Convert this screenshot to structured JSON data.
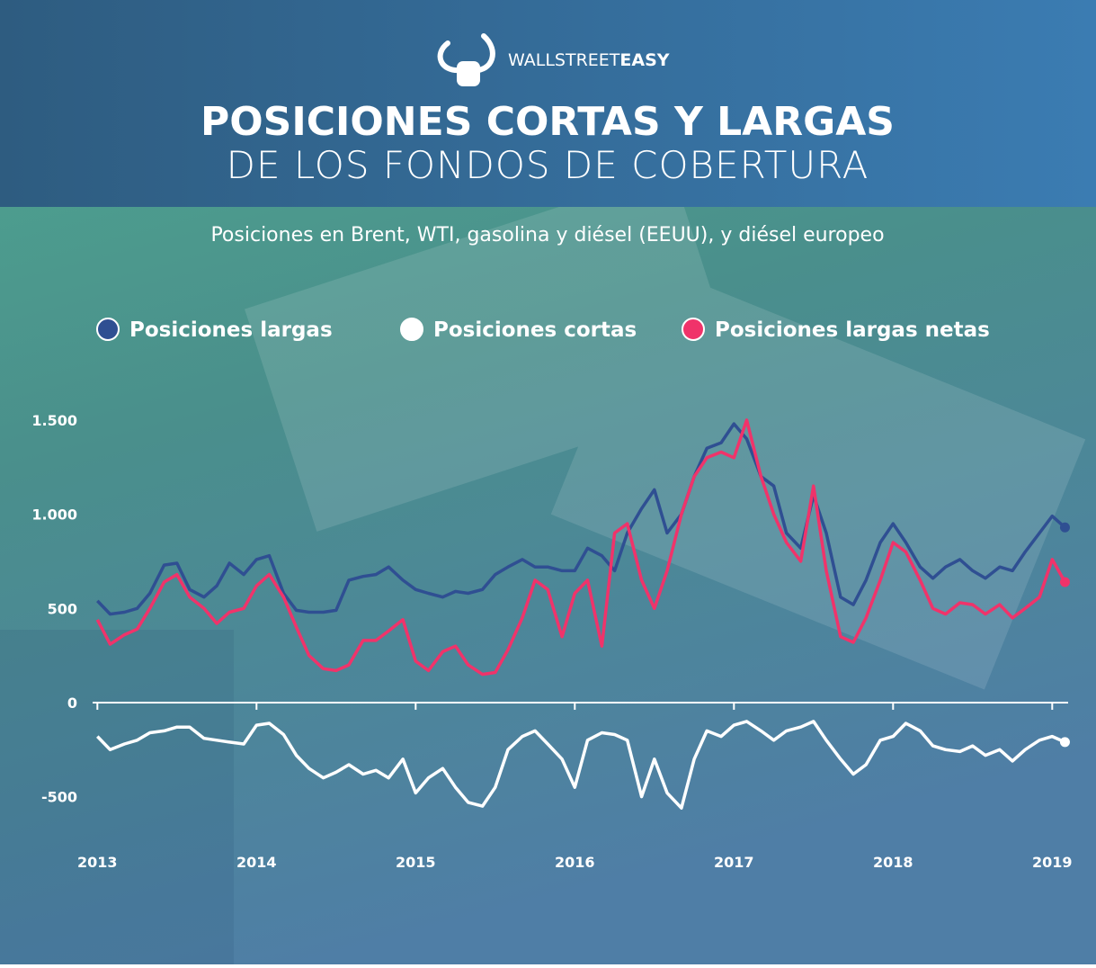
{
  "brand": [
    "WALLSTREET",
    "EASY"
  ],
  "chart_data": {
    "type": "line",
    "title": [
      "POSICIONES CORTAS Y LARGAS",
      "DE LOS FONDOS DE COBERTURA"
    ],
    "subtitle": "Posiciones en Brent, WTI, gasolina y diésel (EEUU), y diésel europeo",
    "x": [
      2013.0,
      2013.08,
      2013.17,
      2013.25,
      2013.33,
      2013.42,
      2013.5,
      2013.58,
      2013.67,
      2013.75,
      2013.83,
      2013.92,
      2014.0,
      2014.08,
      2014.17,
      2014.25,
      2014.33,
      2014.42,
      2014.5,
      2014.58,
      2014.67,
      2014.75,
      2014.83,
      2014.92,
      2015.0,
      2015.08,
      2015.17,
      2015.25,
      2015.33,
      2015.42,
      2015.5,
      2015.58,
      2015.67,
      2015.75,
      2015.83,
      2015.92,
      2016.0,
      2016.08,
      2016.17,
      2016.25,
      2016.33,
      2016.42,
      2016.5,
      2016.58,
      2016.67,
      2016.75,
      2016.83,
      2016.92,
      2017.0,
      2017.08,
      2017.17,
      2017.25,
      2017.33,
      2017.42,
      2017.5,
      2017.58,
      2017.67,
      2017.75,
      2017.83,
      2017.92,
      2018.0,
      2018.08,
      2018.17,
      2018.25,
      2018.33,
      2018.42,
      2018.5,
      2018.58,
      2018.67,
      2018.75,
      2018.83,
      2018.92,
      2019.0,
      2019.08
    ],
    "series": [
      {
        "name": "Posiciones largas",
        "color": "#2f4f92",
        "values": [
          540,
          470,
          480,
          500,
          580,
          730,
          740,
          600,
          560,
          620,
          740,
          680,
          760,
          780,
          580,
          490,
          480,
          480,
          490,
          650,
          670,
          680,
          720,
          650,
          600,
          580,
          560,
          590,
          580,
          600,
          680,
          720,
          760,
          720,
          720,
          700,
          700,
          820,
          780,
          700,
          900,
          1030,
          1130,
          900,
          1000,
          1200,
          1350,
          1380,
          1480,
          1400,
          1200,
          1150,
          900,
          820,
          1100,
          900,
          560,
          520,
          650,
          850,
          950,
          850,
          720,
          660,
          720,
          760,
          700,
          660,
          720,
          700,
          800,
          900,
          990,
          930
        ]
      },
      {
        "name": "Posiciones cortas",
        "color": "#ffffff",
        "values": [
          -180,
          -250,
          -220,
          -200,
          -160,
          -150,
          -130,
          -130,
          -190,
          -200,
          -210,
          -220,
          -120,
          -110,
          -170,
          -280,
          -350,
          -400,
          -370,
          -330,
          -380,
          -360,
          -400,
          -300,
          -480,
          -400,
          -350,
          -450,
          -530,
          -550,
          -450,
          -250,
          -180,
          -150,
          -220,
          -300,
          -450,
          -200,
          -160,
          -170,
          -200,
          -500,
          -300,
          -480,
          -560,
          -300,
          -150,
          -180,
          -120,
          -100,
          -150,
          -200,
          -150,
          -130,
          -100,
          -200,
          -300,
          -380,
          -330,
          -200,
          -180,
          -110,
          -150,
          -230,
          -250,
          -260,
          -230,
          -280,
          -250,
          -310,
          -250,
          -200,
          -180,
          -210
        ]
      },
      {
        "name": "Posiciones largas netas",
        "color": "#f0336a",
        "values": [
          440,
          310,
          360,
          390,
          500,
          640,
          680,
          560,
          500,
          420,
          480,
          500,
          620,
          680,
          560,
          400,
          250,
          180,
          170,
          200,
          330,
          330,
          380,
          440,
          220,
          170,
          270,
          300,
          200,
          150,
          160,
          280,
          450,
          650,
          600,
          350,
          580,
          650,
          300,
          900,
          950,
          650,
          500,
          700,
          1000,
          1200,
          1300,
          1330,
          1300,
          1500,
          1200,
          1000,
          850,
          750,
          1150,
          700,
          350,
          320,
          450,
          650,
          850,
          800,
          650,
          500,
          470,
          530,
          520,
          470,
          520,
          450,
          500,
          560,
          760,
          640
        ]
      }
    ],
    "xlim": [
      2012.97,
      2019.1
    ],
    "xticks": [
      2013,
      2014,
      2015,
      2016,
      2017,
      2018,
      2019
    ],
    "ylim": [
      -700,
      1600
    ],
    "yticks": [
      {
        "value": 1500,
        "label": "1.500"
      },
      {
        "value": 1000,
        "label": "1.000"
      },
      500,
      0,
      -500
    ],
    "grid": false,
    "legend": "top"
  }
}
